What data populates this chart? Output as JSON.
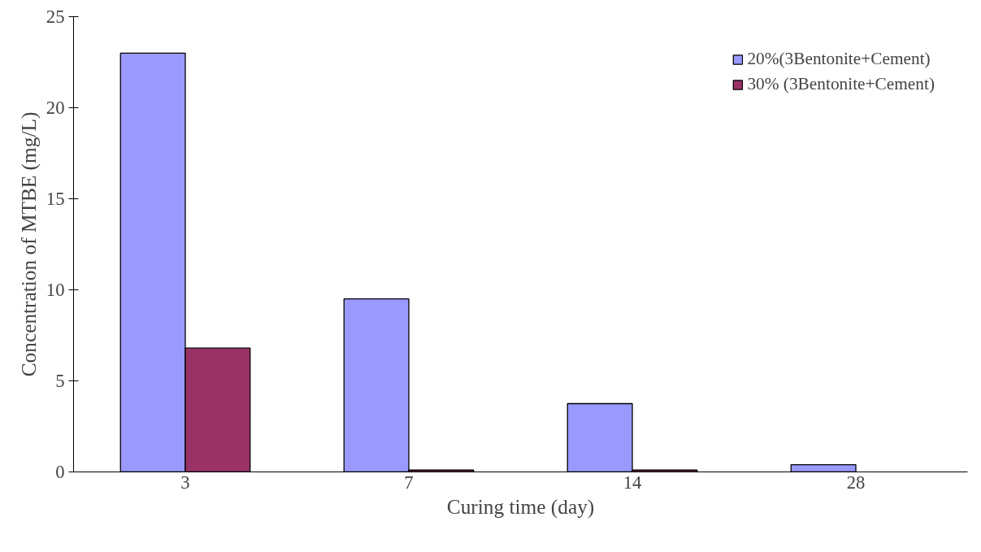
{
  "chart_data": {
    "type": "bar",
    "xlabel": "Curing time (day)",
    "ylabel": "Concentration of MTBE (mg/L)",
    "categories": [
      "3",
      "7",
      "14",
      "28"
    ],
    "series": [
      {
        "name": "20%(3Bentonite+Cement)",
        "color": "#9999ff",
        "values": [
          23,
          9.5,
          3.75,
          0.4
        ]
      },
      {
        "name": "30% (3Bentonite+Cement)",
        "color": "#993366",
        "values": [
          6.8,
          0.1,
          0.1,
          null
        ]
      }
    ],
    "ylim": [
      0,
      25
    ],
    "yticks": [
      0,
      5,
      10,
      15,
      20,
      25
    ],
    "grid": false,
    "legend": "top right"
  }
}
